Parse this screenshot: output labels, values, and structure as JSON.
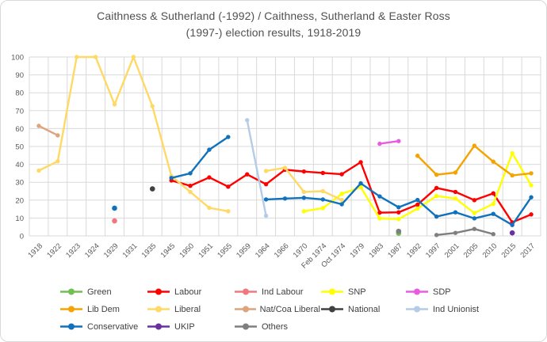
{
  "title": {
    "line1": "Caithness & Sutherland (-1992) / Caithness, Sutherland & Easter Ross",
    "line2": "(1997-) election results, 1918-2019"
  },
  "colors": {
    "grid": "#d9d9d9",
    "axis_text": "#595959",
    "title_text": "#515151",
    "border": "#d9d9d9"
  },
  "chart_data": {
    "type": "line",
    "title": "Caithness & Sutherland (-1992) / Caithness, Sutherland & Easter Ross (1997-) election results, 1918-2019",
    "xlabel": "",
    "ylabel": "",
    "ylim": [
      0,
      100
    ],
    "ytick_step": 10,
    "grid": true,
    "legend_position": "bottom",
    "categories": [
      "1918",
      "1922",
      "1923",
      "1924",
      "1929",
      "1931",
      "1935",
      "1945",
      "1950",
      "1951",
      "1955",
      "1959",
      "1964",
      "1966",
      "1970",
      "Feb 1974",
      "Oct 1974",
      "1979",
      "1983",
      "1987",
      "1992",
      "1997",
      "2001",
      "2005",
      "2010",
      "2015",
      "2017"
    ],
    "series": [
      {
        "name": "Green",
        "color": "#70bf54",
        "values": [
          null,
          null,
          null,
          null,
          null,
          null,
          null,
          null,
          null,
          null,
          null,
          null,
          null,
          null,
          null,
          null,
          null,
          null,
          null,
          1.5,
          null,
          null,
          null,
          null,
          null,
          null,
          null
        ]
      },
      {
        "name": "Labour",
        "color": "#ff0000",
        "values": [
          null,
          null,
          null,
          null,
          null,
          null,
          null,
          31,
          28,
          32.7,
          27.5,
          34.4,
          28.9,
          37,
          36,
          35.2,
          34.5,
          41.2,
          13,
          13.2,
          17.5,
          26.8,
          24.6,
          20,
          23.8,
          7.6,
          12
        ]
      },
      {
        "name": "Ind Labour",
        "color": "#f0787c",
        "values": [
          null,
          null,
          null,
          null,
          8.4,
          null,
          null,
          null,
          null,
          null,
          null,
          null,
          null,
          null,
          null,
          null,
          null,
          null,
          null,
          null,
          null,
          null,
          null,
          null,
          null,
          null,
          null
        ]
      },
      {
        "name": "SNP",
        "color": "#ffff00",
        "values": [
          null,
          null,
          null,
          null,
          null,
          null,
          null,
          null,
          null,
          null,
          null,
          null,
          null,
          null,
          13.8,
          15.5,
          23.5,
          27.2,
          9.8,
          9.4,
          15.3,
          22.3,
          20.9,
          12.8,
          17.9,
          46.2,
          28.3
        ]
      },
      {
        "name": "SDP",
        "color": "#e85ce0",
        "values": [
          null,
          null,
          null,
          null,
          null,
          null,
          null,
          null,
          null,
          null,
          null,
          null,
          null,
          null,
          null,
          null,
          null,
          null,
          51.5,
          53,
          null,
          null,
          null,
          null,
          null,
          null,
          null
        ]
      },
      {
        "name": "Lib Dem",
        "color": "#f5a300",
        "values": [
          null,
          null,
          null,
          null,
          null,
          null,
          null,
          null,
          null,
          null,
          null,
          null,
          null,
          null,
          null,
          null,
          null,
          null,
          null,
          null,
          44.8,
          34.2,
          35.4,
          50.4,
          41.5,
          33.8,
          35
        ]
      },
      {
        "name": "Liberal",
        "color": "#ffd966",
        "values": [
          36.5,
          41.7,
          100,
          100,
          73.5,
          100,
          72.5,
          33.5,
          24.6,
          15.7,
          13.8,
          null,
          36.3,
          38.1,
          24.6,
          25,
          20.1,
          null,
          null,
          null,
          null,
          null,
          null,
          null,
          null,
          null,
          null
        ]
      },
      {
        "name": "Nat/Coa Liberal",
        "color": "#dca57c",
        "values": [
          61.5,
          56.2,
          null,
          null,
          null,
          null,
          null,
          null,
          null,
          null,
          null,
          null,
          null,
          null,
          null,
          null,
          null,
          null,
          null,
          null,
          null,
          null,
          null,
          null,
          null,
          null,
          null
        ]
      },
      {
        "name": "National",
        "color": "#404040",
        "values": [
          null,
          null,
          null,
          null,
          null,
          null,
          26.3,
          null,
          null,
          null,
          null,
          null,
          null,
          null,
          null,
          null,
          null,
          null,
          null,
          null,
          null,
          null,
          null,
          null,
          null,
          null,
          null
        ]
      },
      {
        "name": "Ind Unionist",
        "color": "#b4cce8",
        "values": [
          null,
          null,
          null,
          null,
          null,
          null,
          null,
          null,
          null,
          null,
          null,
          64.7,
          11.3,
          null,
          null,
          null,
          null,
          null,
          null,
          null,
          null,
          null,
          null,
          null,
          null,
          null,
          null
        ]
      },
      {
        "name": "Conservative",
        "color": "#1071bc",
        "values": [
          null,
          null,
          null,
          null,
          15.5,
          null,
          null,
          32.4,
          35,
          48.2,
          55.3,
          null,
          20.4,
          20.9,
          21.3,
          20.4,
          17.7,
          29.4,
          22.1,
          16,
          20.1,
          10.8,
          13.2,
          9.8,
          12.3,
          6.1,
          21.6
        ]
      },
      {
        "name": "UKIP",
        "color": "#6b30a0",
        "values": [
          null,
          null,
          null,
          null,
          null,
          null,
          null,
          null,
          null,
          null,
          null,
          null,
          null,
          null,
          null,
          null,
          null,
          null,
          null,
          null,
          null,
          null,
          null,
          null,
          null,
          1.7,
          null
        ]
      },
      {
        "name": "Others",
        "color": "#7f7f7f",
        "values": [
          null,
          null,
          null,
          null,
          null,
          null,
          null,
          null,
          null,
          null,
          null,
          null,
          null,
          null,
          null,
          null,
          null,
          null,
          null,
          2.6,
          null,
          0.5,
          1.7,
          3.9,
          1,
          null,
          null
        ]
      }
    ]
  }
}
